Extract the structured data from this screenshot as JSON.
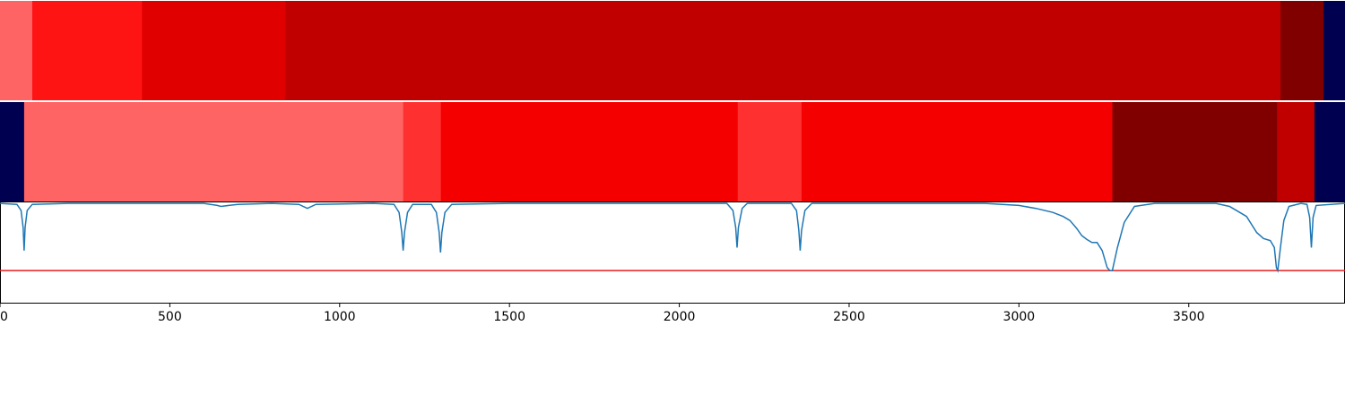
{
  "chart_data": {
    "type": "heatmap",
    "xlim": [
      0,
      3960
    ],
    "x_ticks": [
      {
        "value": 0,
        "label": "0"
      },
      {
        "value": 500,
        "label": "500"
      },
      {
        "value": 1000,
        "label": "1000"
      },
      {
        "value": 1500,
        "label": "1500"
      },
      {
        "value": 2000,
        "label": "2000"
      },
      {
        "value": 2500,
        "label": "2500"
      },
      {
        "value": 3000,
        "label": "3000"
      },
      {
        "value": 3500,
        "label": "3500"
      }
    ],
    "rows": [
      {
        "segments": [
          {
            "start": 0,
            "end": 95,
            "color": "#ff6464"
          },
          {
            "start": 95,
            "end": 418,
            "color": "#ff1414"
          },
          {
            "start": 418,
            "end": 840,
            "color": "#e10000"
          },
          {
            "start": 840,
            "end": 3770,
            "color": "#c00000"
          },
          {
            "start": 3770,
            "end": 3897,
            "color": "#800000"
          },
          {
            "start": 3897,
            "end": 3960,
            "color": "#000050"
          }
        ]
      },
      {
        "segments": [
          {
            "start": 0,
            "end": 71,
            "color": "#000050"
          },
          {
            "start": 71,
            "end": 1187,
            "color": "#ff6464"
          },
          {
            "start": 1187,
            "end": 1298,
            "color": "#ff3030"
          },
          {
            "start": 1298,
            "end": 2172,
            "color": "#f50000"
          },
          {
            "start": 2172,
            "end": 2360,
            "color": "#ff3030"
          },
          {
            "start": 2360,
            "end": 3275,
            "color": "#f50000"
          },
          {
            "start": 3275,
            "end": 3760,
            "color": "#800000"
          },
          {
            "start": 3760,
            "end": 3870,
            "color": "#c00000"
          },
          {
            "start": 3870,
            "end": 3960,
            "color": "#000050"
          }
        ]
      }
    ],
    "line_series": {
      "color": "#1f77b4",
      "ylim": [
        0,
        1
      ],
      "points": [
        [
          0,
          0.99
        ],
        [
          50,
          0.98
        ],
        [
          62,
          0.92
        ],
        [
          68,
          0.75
        ],
        [
          71,
          0.52
        ],
        [
          74,
          0.75
        ],
        [
          80,
          0.92
        ],
        [
          95,
          0.98
        ],
        [
          200,
          0.99
        ],
        [
          600,
          0.99
        ],
        [
          640,
          0.97
        ],
        [
          650,
          0.96
        ],
        [
          700,
          0.98
        ],
        [
          800,
          0.99
        ],
        [
          880,
          0.98
        ],
        [
          905,
          0.94
        ],
        [
          930,
          0.98
        ],
        [
          1100,
          0.99
        ],
        [
          1160,
          0.98
        ],
        [
          1175,
          0.9
        ],
        [
          1183,
          0.7
        ],
        [
          1187,
          0.52
        ],
        [
          1191,
          0.7
        ],
        [
          1200,
          0.9
        ],
        [
          1215,
          0.98
        ],
        [
          1270,
          0.98
        ],
        [
          1285,
          0.9
        ],
        [
          1293,
          0.7
        ],
        [
          1297,
          0.5
        ],
        [
          1301,
          0.7
        ],
        [
          1310,
          0.9
        ],
        [
          1330,
          0.98
        ],
        [
          1500,
          0.99
        ],
        [
          2140,
          0.99
        ],
        [
          2158,
          0.92
        ],
        [
          2166,
          0.75
        ],
        [
          2170,
          0.55
        ],
        [
          2174,
          0.75
        ],
        [
          2185,
          0.94
        ],
        [
          2200,
          0.99
        ],
        [
          2330,
          0.99
        ],
        [
          2345,
          0.92
        ],
        [
          2352,
          0.72
        ],
        [
          2356,
          0.52
        ],
        [
          2360,
          0.72
        ],
        [
          2370,
          0.92
        ],
        [
          2390,
          0.99
        ],
        [
          2900,
          0.99
        ],
        [
          3000,
          0.97
        ],
        [
          3050,
          0.94
        ],
        [
          3100,
          0.9
        ],
        [
          3130,
          0.86
        ],
        [
          3150,
          0.82
        ],
        [
          3170,
          0.74
        ],
        [
          3185,
          0.67
        ],
        [
          3200,
          0.63
        ],
        [
          3215,
          0.6
        ],
        [
          3230,
          0.6
        ],
        [
          3245,
          0.52
        ],
        [
          3260,
          0.35
        ],
        [
          3268,
          0.32
        ],
        [
          3275,
          0.32
        ],
        [
          3290,
          0.55
        ],
        [
          3310,
          0.8
        ],
        [
          3340,
          0.96
        ],
        [
          3400,
          0.99
        ],
        [
          3580,
          0.99
        ],
        [
          3620,
          0.96
        ],
        [
          3650,
          0.9
        ],
        [
          3670,
          0.86
        ],
        [
          3685,
          0.78
        ],
        [
          3700,
          0.7
        ],
        [
          3720,
          0.64
        ],
        [
          3740,
          0.62
        ],
        [
          3752,
          0.55
        ],
        [
          3758,
          0.35
        ],
        [
          3762,
          0.32
        ],
        [
          3770,
          0.55
        ],
        [
          3780,
          0.82
        ],
        [
          3795,
          0.96
        ],
        [
          3830,
          0.99
        ],
        [
          3848,
          0.98
        ],
        [
          3856,
          0.85
        ],
        [
          3861,
          0.55
        ],
        [
          3866,
          0.85
        ],
        [
          3875,
          0.97
        ],
        [
          3960,
          0.99
        ]
      ]
    },
    "threshold": {
      "value": 0.32,
      "color": "#e81e1e"
    }
  }
}
